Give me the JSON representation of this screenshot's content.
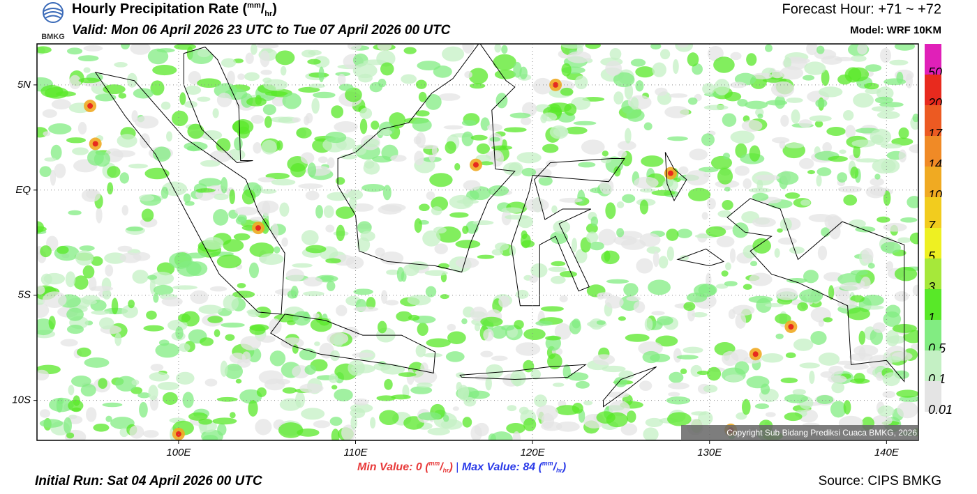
{
  "header": {
    "title": "Hourly Precipitation Rate",
    "title_unit": [
      "(",
      "mm",
      "/",
      "hr",
      ")"
    ],
    "valid": "Valid: Mon 06 April 2026 23 UTC to Tue 07 April 2026 00 UTC",
    "logo": "BMKG",
    "forecast_hour": "Forecast Hour: +71 ~ +72",
    "model": "Model: WRF 10KM"
  },
  "map": {
    "xlim": [
      92,
      141.8
    ],
    "ylim": [
      -11.9,
      6.95
    ],
    "lon_ticks": [
      {
        "value": 100,
        "label": "100E"
      },
      {
        "value": 110,
        "label": "110E"
      },
      {
        "value": 120,
        "label": "120E"
      },
      {
        "value": 130,
        "label": "130E"
      },
      {
        "value": 140,
        "label": "140E"
      }
    ],
    "lat_ticks": [
      {
        "value": 5,
        "label": "5N"
      },
      {
        "value": 0,
        "label": "EQ"
      },
      {
        "value": -5,
        "label": "5S"
      },
      {
        "value": -10,
        "label": "10S"
      }
    ],
    "copyright": "Copyright Sub Bidang Prediksi Cuaca BMKG, 2026"
  },
  "colorbar": {
    "levels": [
      {
        "value": 50,
        "color": "#e020b8"
      },
      {
        "value": 20,
        "color": "#e82a1e"
      },
      {
        "value": 17,
        "color": "#ec5a22"
      },
      {
        "value": 14,
        "color": "#f08a26"
      },
      {
        "value": 10,
        "color": "#f0aa22"
      },
      {
        "value": 7,
        "color": "#f2cc1e"
      },
      {
        "value": 5,
        "color": "#eef022"
      },
      {
        "value": 3,
        "color": "#a6e83a"
      },
      {
        "value": 1,
        "color": "#58e828"
      },
      {
        "value": 0.5,
        "color": "#82ec82"
      },
      {
        "value": 0.1,
        "color": "#c4f0c4"
      },
      {
        "value": 0.01,
        "color": "#e4e4e4"
      }
    ]
  },
  "footer": {
    "initial_run": "Initial Run: Sat 04 April 2026 00 UTC",
    "source": "Source: CIPS BMKG",
    "min_value": {
      "label": "Min Value:",
      "value": 0,
      "unit": [
        "(",
        "mm",
        "/",
        "hr",
        ")"
      ]
    },
    "separator": "|",
    "max_value": {
      "label": "Max Value:",
      "value": 84,
      "unit": [
        "(",
        "mm",
        "/",
        "hr",
        ")"
      ]
    }
  }
}
